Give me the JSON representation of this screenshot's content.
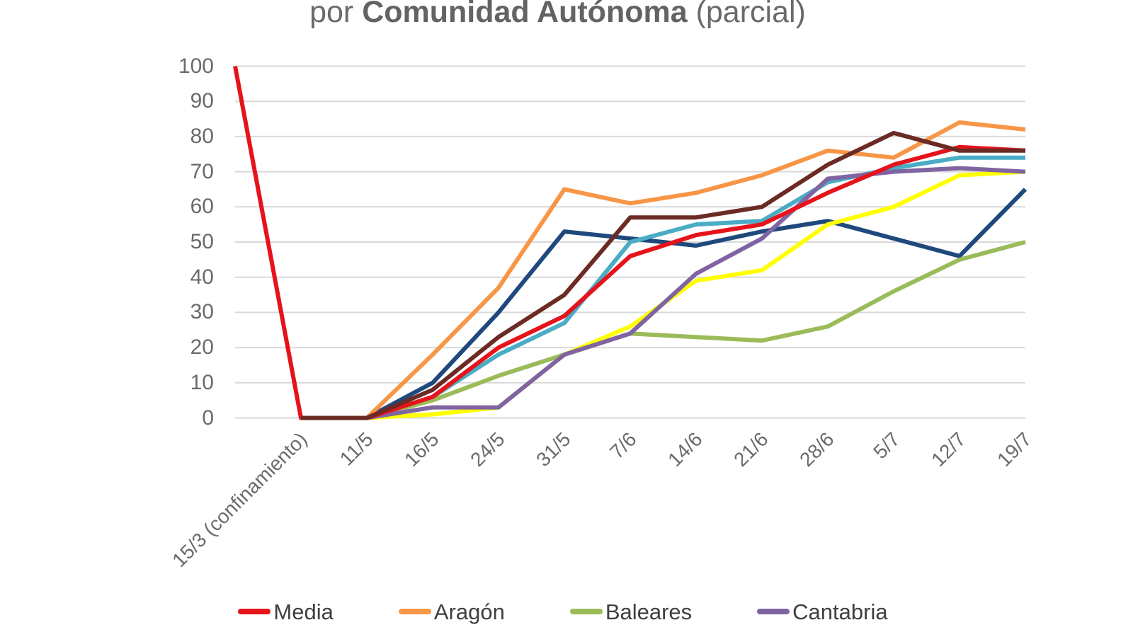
{
  "title": {
    "prefix": "por ",
    "bold": "Comunidad Autónoma",
    "suffix": " (parcial)"
  },
  "axes": {
    "y_ticks": [
      "100",
      "90",
      "80",
      "70",
      "60",
      "50",
      "40",
      "30",
      "20",
      "10",
      "0"
    ]
  },
  "legend": {
    "items": [
      {
        "id": "media",
        "label": "Media",
        "color": "#E6131B"
      },
      {
        "id": "aragon",
        "label": "Aragón",
        "color": "#F79646"
      },
      {
        "id": "baleares",
        "label": "Baleares",
        "color": "#9BBB59"
      },
      {
        "id": "cantabria",
        "label": "Cantabria",
        "color": "#8064A2"
      }
    ]
  },
  "colors": {
    "background": "#FFFFFF",
    "grid": "#D9D9D9",
    "tick_text": "#6B6B6B",
    "legend_text": "#3F3F3F",
    "title_text": "#6A6A6A"
  },
  "chart_data": {
    "type": "line",
    "categories": [
      "",
      "15/3 (confinamiento)",
      "11/5",
      "16/5",
      "24/5",
      "31/5",
      "7/6",
      "14/6",
      "21/6",
      "28/6",
      "5/7",
      "12/7",
      "19/7"
    ],
    "ylim": [
      0,
      100
    ],
    "y_tick_step": 10,
    "grid": true,
    "legend_position": "bottom",
    "note": "first category has no visible label; 8 lines drawn but only 4 named in the visible (cropped) legend",
    "series": [
      {
        "id": "dark-blue-line",
        "name": null,
        "color": "#1F497D",
        "in_legend": false,
        "values": [
          null,
          0,
          0,
          10,
          30,
          53,
          51,
          49,
          53,
          56,
          51,
          46,
          65
        ]
      },
      {
        "id": "teal-line",
        "name": null,
        "color": "#4BACC6",
        "in_legend": false,
        "values": [
          null,
          0,
          0,
          6,
          18,
          27,
          50,
          55,
          56,
          67,
          71,
          74,
          74
        ]
      },
      {
        "id": "baleares-line",
        "name": "Baleares",
        "color": "#9BBB59",
        "in_legend": true,
        "values": [
          null,
          0,
          0,
          5,
          12,
          18,
          24,
          23,
          22,
          26,
          36,
          45,
          50
        ]
      },
      {
        "id": "yellow-line",
        "name": null,
        "color": "#FFFF00",
        "in_legend": false,
        "values": [
          null,
          0,
          0,
          1,
          3,
          18,
          26,
          39,
          42,
          55,
          60,
          69,
          70
        ]
      },
      {
        "id": "cantabria-line",
        "name": "Cantabria",
        "color": "#8064A2",
        "in_legend": true,
        "values": [
          null,
          0,
          0,
          3,
          3,
          18,
          24,
          41,
          51,
          68,
          70,
          71,
          70
        ]
      },
      {
        "id": "aragon-line",
        "name": "Aragón",
        "color": "#F79646",
        "in_legend": true,
        "values": [
          null,
          0,
          0,
          18,
          37,
          65,
          61,
          64,
          69,
          76,
          74,
          84,
          82
        ]
      },
      {
        "id": "media-line",
        "name": "Media",
        "color": "#E6131B",
        "in_legend": true,
        "values": [
          100,
          0,
          0,
          6,
          20,
          29,
          46,
          52,
          55,
          64,
          72,
          77,
          76
        ]
      },
      {
        "id": "dark-red-line",
        "name": null,
        "color": "#6B2B24",
        "in_legend": false,
        "values": [
          null,
          0,
          0,
          8,
          23,
          35,
          57,
          57,
          60,
          72,
          81,
          76,
          76
        ]
      }
    ]
  }
}
